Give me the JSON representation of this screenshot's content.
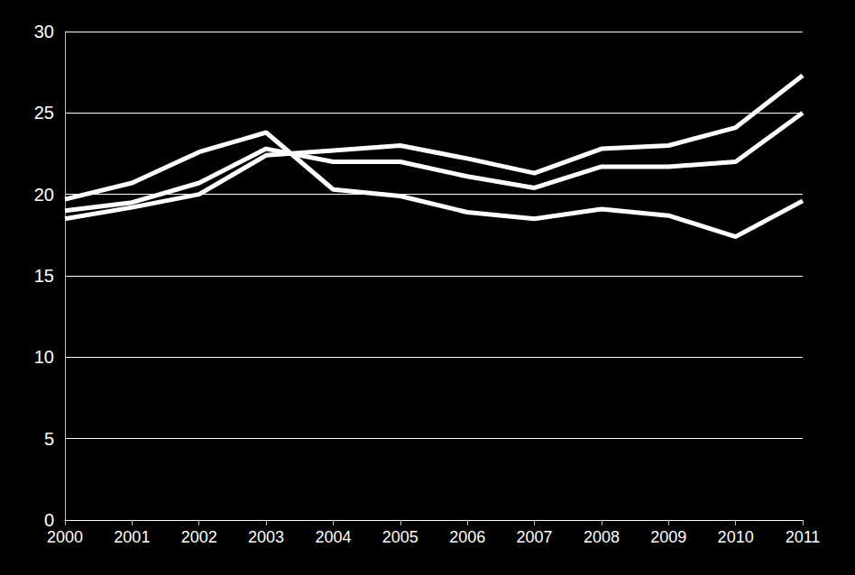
{
  "chart_data": {
    "type": "line",
    "categories": [
      "2000",
      "2001",
      "2002",
      "2003",
      "2004",
      "2005",
      "2006",
      "2007",
      "2008",
      "2009",
      "2010",
      "2011"
    ],
    "series": [
      {
        "color": "#ffffff",
        "values": [
          19.7,
          20.7,
          22.6,
          23.8,
          20.3,
          19.9,
          18.9,
          18.5,
          19.1,
          18.7,
          17.4,
          19.6
        ]
      },
      {
        "color": "#ffffff",
        "values": [
          19.0,
          19.5,
          20.7,
          22.8,
          22.0,
          22.0,
          21.1,
          20.4,
          21.7,
          21.7,
          22.0,
          25.0
        ]
      },
      {
        "color": "#ffffff",
        "values": [
          18.5,
          19.2,
          20.0,
          22.4,
          22.7,
          23.0,
          22.2,
          21.3,
          22.8,
          23.0,
          24.1,
          27.3
        ]
      }
    ],
    "ylim": [
      0,
      30
    ],
    "yticks": [
      0,
      5,
      10,
      15,
      20,
      25,
      30
    ],
    "grid": true
  }
}
